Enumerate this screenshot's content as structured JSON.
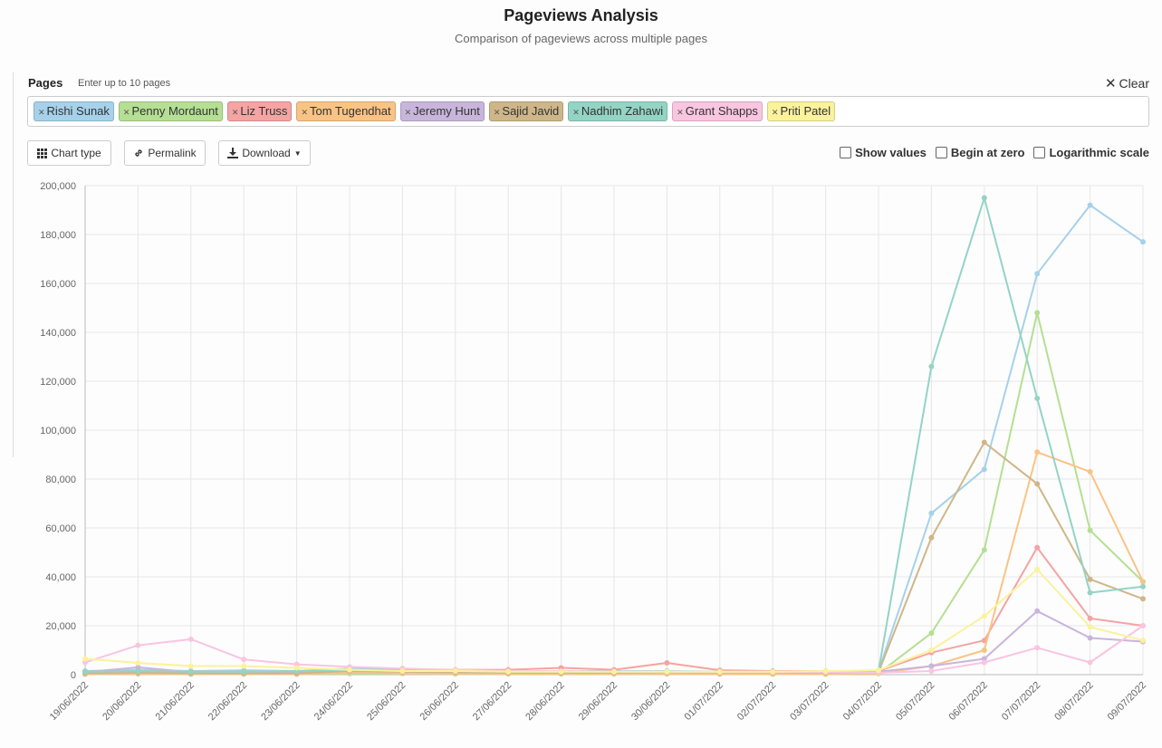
{
  "header": {
    "title": "Pageviews Analysis",
    "subtitle": "Comparison of pageviews across multiple pages"
  },
  "pages_input": {
    "label": "Pages",
    "hint": "Enter up to 10 pages",
    "clear_label": "Clear",
    "tags": [
      {
        "label": "Rishi Sunak",
        "color": "#a6d1ea"
      },
      {
        "label": "Penny Mordaunt",
        "color": "#b5df93"
      },
      {
        "label": "Liz Truss",
        "color": "#f5a3a3"
      },
      {
        "label": "Tom Tugendhat",
        "color": "#fac386"
      },
      {
        "label": "Jeremy Hunt",
        "color": "#c9b5dc"
      },
      {
        "label": "Sajid Javid",
        "color": "#cfb689"
      },
      {
        "label": "Nadhim Zahawi",
        "color": "#93d4c5"
      },
      {
        "label": "Grant Shapps",
        "color": "#f9c5e0"
      },
      {
        "label": "Priti Patel",
        "color": "#fbf29c"
      }
    ]
  },
  "toolbar": {
    "chart_type_label": "Chart type",
    "permalink_label": "Permalink",
    "download_label": "Download"
  },
  "options": {
    "show_values": "Show values",
    "begin_at_zero": "Begin at zero",
    "log_scale": "Logarithmic scale"
  },
  "chart_data": {
    "type": "line",
    "ylim": [
      0,
      200000
    ],
    "yticks": [
      "0",
      "20,000",
      "40,000",
      "60,000",
      "80,000",
      "100,000",
      "120,000",
      "140,000",
      "160,000",
      "180,000",
      "200,000"
    ],
    "x": [
      "19/06/2022",
      "20/06/2022",
      "21/06/2022",
      "22/06/2022",
      "23/06/2022",
      "24/06/2022",
      "25/06/2022",
      "26/06/2022",
      "27/06/2022",
      "28/06/2022",
      "29/06/2022",
      "30/06/2022",
      "01/07/2022",
      "02/07/2022",
      "03/07/2022",
      "04/07/2022",
      "05/07/2022",
      "06/07/2022",
      "07/07/2022",
      "08/07/2022",
      "09/07/2022"
    ],
    "grid": true,
    "series": [
      {
        "name": "Rishi Sunak",
        "color": "#a6d1ea",
        "values": [
          1500,
          2000,
          1500,
          1800,
          1500,
          2500,
          2200,
          1800,
          1500,
          1500,
          1500,
          1500,
          1200,
          1200,
          1200,
          1500,
          66000,
          84000,
          164000,
          192000,
          177000
        ]
      },
      {
        "name": "Penny Mordaunt",
        "color": "#b5df93",
        "values": [
          300,
          400,
          300,
          300,
          300,
          400,
          400,
          300,
          300,
          300,
          300,
          300,
          300,
          300,
          300,
          500,
          17000,
          51000,
          148000,
          59000,
          38000
        ]
      },
      {
        "name": "Liz Truss",
        "color": "#f5a3a3",
        "values": [
          1200,
          1500,
          1200,
          1200,
          1200,
          1500,
          2000,
          2000,
          2000,
          2800,
          2000,
          4800,
          1800,
          1500,
          1500,
          1500,
          9000,
          14000,
          52000,
          23000,
          20000
        ]
      },
      {
        "name": "Tom Tugendhat",
        "color": "#fac386",
        "values": [
          200,
          300,
          200,
          200,
          200,
          800,
          500,
          400,
          300,
          300,
          300,
          300,
          200,
          200,
          200,
          500,
          3500,
          10000,
          91000,
          83000,
          38000
        ]
      },
      {
        "name": "Jeremy Hunt",
        "color": "#c9b5dc",
        "values": [
          1000,
          3000,
          1000,
          1000,
          1000,
          1500,
          1200,
          1000,
          1000,
          1000,
          1000,
          1000,
          1000,
          1000,
          1000,
          1200,
          3500,
          6500,
          26000,
          15000,
          13500
        ]
      },
      {
        "name": "Sajid Javid",
        "color": "#cfb689",
        "values": [
          500,
          800,
          500,
          500,
          500,
          1500,
          1200,
          1000,
          800,
          800,
          800,
          1000,
          800,
          800,
          800,
          1000,
          56000,
          95000,
          78000,
          39000,
          31000
        ]
      },
      {
        "name": "Nadhim Zahawi",
        "color": "#93d4c5",
        "values": [
          1200,
          1500,
          1200,
          1200,
          1500,
          2000,
          2000,
          1500,
          1200,
          1200,
          1200,
          1200,
          1000,
          1200,
          1200,
          1500,
          126000,
          195000,
          113000,
          33500,
          36000
        ]
      },
      {
        "name": "Grant Shapps",
        "color": "#f9c5e0",
        "values": [
          5000,
          12000,
          14500,
          6200,
          4200,
          3200,
          2500,
          2000,
          1500,
          1500,
          1200,
          1200,
          1000,
          1000,
          1000,
          800,
          1500,
          5000,
          11000,
          5000,
          20000
        ]
      },
      {
        "name": "Priti Patel",
        "color": "#fbf29c",
        "values": [
          6500,
          4800,
          3500,
          3500,
          2800,
          2000,
          1500,
          1500,
          1200,
          1200,
          1200,
          1200,
          1200,
          1200,
          1500,
          1800,
          10000,
          24000,
          43000,
          19500,
          14000
        ]
      }
    ]
  }
}
